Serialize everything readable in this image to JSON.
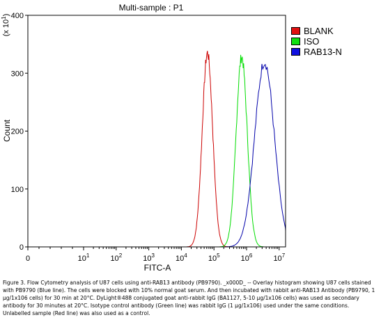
{
  "chart_data": {
    "type": "line",
    "title": "Multi-sample : P1",
    "xlabel": "FITC-A",
    "ylabel": "Count",
    "y_scale_note": "(x 10^1)",
    "x_scale": "log",
    "xlim_log10": [
      0,
      7.1
    ],
    "ylim": [
      0,
      400
    ],
    "x_ticks": [
      {
        "pos": 0,
        "base": "0",
        "exp": ""
      },
      {
        "pos": 2,
        "base": "10",
        "exp": "1"
      },
      {
        "pos": 3,
        "base": "10",
        "exp": "2"
      },
      {
        "pos": 4,
        "base": "10",
        "exp": "3"
      },
      {
        "pos": 5,
        "base": "10",
        "exp": "4"
      },
      {
        "pos": 6,
        "base": "10",
        "exp": "5"
      },
      {
        "pos": 7,
        "base": "10",
        "exp": "6"
      },
      {
        "pos": 8,
        "base": "10",
        "exp": "7"
      }
    ],
    "y_ticks": [
      0,
      100,
      200,
      300,
      400
    ],
    "series": [
      {
        "name": "BLANK",
        "color": "#cc0000",
        "peak_log10": 4.8,
        "peak_count": 335,
        "width_log10": 0.16
      },
      {
        "name": "ISO",
        "color": "#00dd00",
        "peak_log10": 5.85,
        "peak_count": 328,
        "width_log10": 0.17
      },
      {
        "name": "RAB13-N",
        "color": "#0000aa",
        "peak_log10": 6.55,
        "peak_count": 320,
        "width_log10": 0.3
      }
    ],
    "legend_position": "right"
  },
  "caption": "Figure 3. Flow Cytometry analysis of U87 cells using anti-RAB13 antibody (PB9790). _x000D_ -- Overlay histogram showing U87 cells stained with PB9790 (Blue line). The cells were blocked with 10% normal goat serum. And then incubated with rabbit anti-RAB13 Antibody (PB9790, 1 µg/1x106 cells) for 30 min at 20°C. DyLight®488 conjugated goat anti-rabbit IgG (BA1127, 5-10 µg/1x106 cells) was used as secondary antibody for 30 minutes at 20°C. Isotype control antibody (Green line) was rabbit IgG (1 µg/1x106) used under the same conditions. Unlabelled sample (Red line) was also used as a control."
}
